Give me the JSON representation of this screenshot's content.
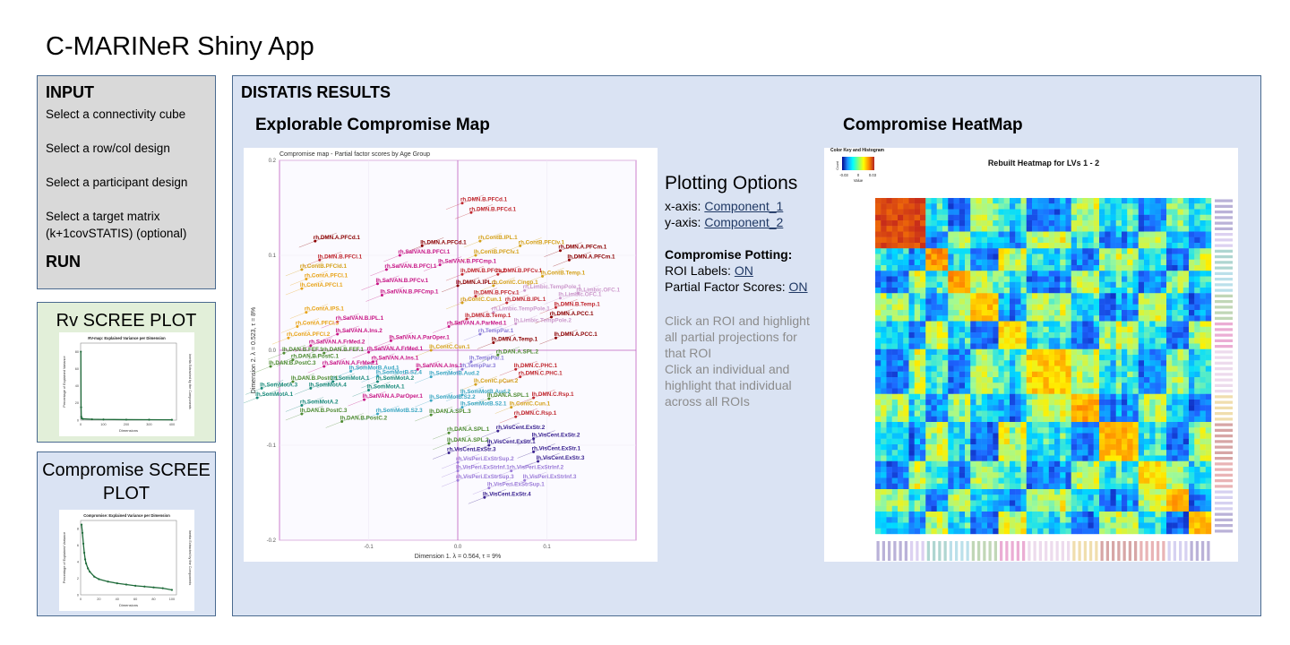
{
  "app_title": "C-MARINeR Shiny App",
  "input": {
    "heading": "INPUT",
    "options": [
      "Select a connectivity cube",
      "Select a row/col design",
      "Select a participant design",
      "Select a target matrix (k+1covSTATIS) (optional)"
    ],
    "run": "RUN"
  },
  "rv_scree": {
    "title": "Rv SCREE PLOT",
    "plot_title": "RV-map: Explained Variance per Dimension",
    "xlabel": "Dimensions",
    "ylabel": "Percentage of Explained Variance",
    "ylabel2": "Inertia Extracted by the Components"
  },
  "comp_scree": {
    "title": "Compromise SCREE PLOT",
    "plot_title": "Compromise: Explained Variance per Dimension",
    "xlabel": "Dimensions",
    "ylabel": "Percentage of Explained Variance",
    "ylabel2": "Inertia Extracted by the Components"
  },
  "results": {
    "title": "DISTATIS RESULTS",
    "map_title": "Explorable Compromise Map",
    "heat_title": "Compromise HeatMap"
  },
  "map": {
    "plot_title": "Compromise map - Partial factor scores by Age Group",
    "xlabel": "Dimension 1.  λ = 0.564,  τ = 9%",
    "ylabel": "Dimension 2.  λ = 0.523,  τ = 8%",
    "xticks": [
      "-0.1",
      "0.0",
      "0.1"
    ],
    "yticks": [
      "0.2",
      "0.1",
      "0.0",
      "-0.1",
      "-0.2"
    ],
    "labels": [
      {
        "t": "rh.DMN.B.PFCd.1",
        "x": 0.005,
        "y": 0.155,
        "c": "#c0282f"
      },
      {
        "t": "rh.DMN.B.PFCd.1",
        "x": 0.015,
        "y": 0.145,
        "c": "#c0282f"
      },
      {
        "t": "rh.DMN.A.PFCd.1",
        "x": -0.16,
        "y": 0.115,
        "c": "#8b0000"
      },
      {
        "t": "lh.DMN.A.PFCd.1",
        "x": -0.04,
        "y": 0.11,
        "c": "#8b0000"
      },
      {
        "t": "rh.ContB.IPL.1",
        "x": 0.025,
        "y": 0.115,
        "c": "#d4a017"
      },
      {
        "t": "rh.ContB.PFClv.1",
        "x": 0.07,
        "y": 0.11,
        "c": "#d4a017"
      },
      {
        "t": "rh.DMN.A.PFCm.1",
        "x": 0.115,
        "y": 0.105,
        "c": "#8b0000"
      },
      {
        "t": "lh.DMN.A.PFCm.1",
        "x": 0.125,
        "y": 0.095,
        "c": "#8b0000"
      },
      {
        "t": "lh.DMN.B.PFCl.1",
        "x": -0.155,
        "y": 0.095,
        "c": "#c0282f"
      },
      {
        "t": "rh.SalVAN.B.PFCl.1",
        "x": -0.065,
        "y": 0.1,
        "c": "#c71585"
      },
      {
        "t": "lh.SalVAN.B.PFCmp.1",
        "x": -0.02,
        "y": 0.09,
        "c": "#c71585"
      },
      {
        "t": "lh.ContB.PFClv.1",
        "x": 0.02,
        "y": 0.1,
        "c": "#d4a017"
      },
      {
        "t": "rh.ContB.PFCld.1",
        "x": -0.175,
        "y": 0.085,
        "c": "#d4a017"
      },
      {
        "t": "rh.SalVAN.B.PFCl.1",
        "x": -0.08,
        "y": 0.085,
        "c": "#c71585"
      },
      {
        "t": "lh.DMN.B.PFCv.2",
        "x": 0.005,
        "y": 0.08,
        "c": "#c0282f"
      },
      {
        "t": "rh.DMN.B.PFCv.1",
        "x": 0.045,
        "y": 0.08,
        "c": "#c0282f"
      },
      {
        "t": "lh.ContB.Temp.1",
        "x": 0.095,
        "y": 0.078,
        "c": "#d4a017"
      },
      {
        "t": "rh.ContA.PFCl.1",
        "x": -0.17,
        "y": 0.075,
        "c": "#e8a317"
      },
      {
        "t": "lh.ContA.PFCl.1",
        "x": -0.175,
        "y": 0.065,
        "c": "#e8a317"
      },
      {
        "t": "lh.SalVAN.B.PFCv.1",
        "x": -0.09,
        "y": 0.07,
        "c": "#c71585"
      },
      {
        "t": "lh.DMN.A.IPL.1",
        "x": 0.0,
        "y": 0.068,
        "c": "#8b0000"
      },
      {
        "t": "rh.ContC.Cingp.1",
        "x": 0.04,
        "y": 0.068,
        "c": "#d4a017"
      },
      {
        "t": "rh.Limbic.TempPole.1",
        "x": 0.075,
        "y": 0.063,
        "c": "#cc99cc"
      },
      {
        "t": "rh.Limbic.OFC.1",
        "x": 0.135,
        "y": 0.06,
        "c": "#cc99cc"
      },
      {
        "t": "lh.SalVAN.B.PFCmp.1",
        "x": -0.085,
        "y": 0.058,
        "c": "#c71585"
      },
      {
        "t": "lh.DMN.B.PFCv.1",
        "x": 0.02,
        "y": 0.057,
        "c": "#c0282f"
      },
      {
        "t": "lh.Limbic.OFC.1",
        "x": 0.115,
        "y": 0.055,
        "c": "#cc99cc"
      },
      {
        "t": "rh.ContC.Cun.1",
        "x": 0.005,
        "y": 0.05,
        "c": "#d4a017"
      },
      {
        "t": "rh.DMN.B.IPL.1",
        "x": 0.055,
        "y": 0.05,
        "c": "#c0282f"
      },
      {
        "t": "lh.DMN.B.Temp.1",
        "x": 0.11,
        "y": 0.045,
        "c": "#c0282f"
      },
      {
        "t": "rh.ContA.IPS.1",
        "x": -0.17,
        "y": 0.04,
        "c": "#e8a317"
      },
      {
        "t": "rh.Limbic.TempPole.1",
        "x": 0.04,
        "y": 0.04,
        "c": "#cc99cc"
      },
      {
        "t": "rh.DMN.A.PCC.1",
        "x": 0.105,
        "y": 0.035,
        "c": "#8b0000"
      },
      {
        "t": "rh.SalVAN.B.IPL.1",
        "x": -0.135,
        "y": 0.03,
        "c": "#c71585"
      },
      {
        "t": "lh.DMN.B.Temp.1",
        "x": 0.01,
        "y": 0.033,
        "c": "#c0282f"
      },
      {
        "t": "lh.Limbic.TempPole.2",
        "x": 0.065,
        "y": 0.028,
        "c": "#cc99cc"
      },
      {
        "t": "rh.ContA.PFCl.3",
        "x": -0.18,
        "y": 0.025,
        "c": "#e8a317"
      },
      {
        "t": "rh.SalVAN.A.ParMed.1",
        "x": -0.01,
        "y": 0.025,
        "c": "#c71585"
      },
      {
        "t": "lh.SalVAN.A.Ins.2",
        "x": -0.135,
        "y": 0.017,
        "c": "#c71585"
      },
      {
        "t": "rh.TempPar.1",
        "x": 0.025,
        "y": 0.017,
        "c": "#8a7bd8"
      },
      {
        "t": "lh.DMN.A.PCC.1",
        "x": 0.11,
        "y": 0.013,
        "c": "#8b0000"
      },
      {
        "t": "rh.ContA.PFCl.2",
        "x": -0.19,
        "y": 0.013,
        "c": "#e8a317"
      },
      {
        "t": "lh.SalVAN.A.ParOper.1",
        "x": -0.075,
        "y": 0.01,
        "c": "#c71585"
      },
      {
        "t": "lh.DMN.A.Temp.1",
        "x": 0.04,
        "y": 0.008,
        "c": "#8b0000"
      },
      {
        "t": "rh.SalVAN.A.FrMed.2",
        "x": -0.165,
        "y": 0.005,
        "c": "#c71585"
      },
      {
        "t": "lh.ContC.Cun.1",
        "x": -0.03,
        "y": 0.0,
        "c": "#d4a017"
      },
      {
        "t": "lh.DAN.B.FEF.1",
        "x": -0.195,
        "y": -0.003,
        "c": "#4d8b31"
      },
      {
        "t": "rh.DAN.B.FEF.1",
        "x": -0.15,
        "y": -0.003,
        "c": "#4d8b31"
      },
      {
        "t": "rh.SalVAN.A.FrMed.1",
        "x": -0.1,
        "y": -0.002,
        "c": "#c71585"
      },
      {
        "t": "rh.DAN.A.SPL.2",
        "x": 0.045,
        "y": -0.005,
        "c": "#4d8b31"
      },
      {
        "t": "rh.DAN.B.PostC.1",
        "x": -0.185,
        "y": -0.01,
        "c": "#4d8b31"
      },
      {
        "t": "rh.SalVAN.A.Ins.1",
        "x": -0.095,
        "y": -0.012,
        "c": "#c71585"
      },
      {
        "t": "lh.TempPar.1",
        "x": 0.015,
        "y": -0.012,
        "c": "#8a7bd8"
      },
      {
        "t": "lh.DAN.B.PostC.3",
        "x": -0.21,
        "y": -0.017,
        "c": "#4d8b31"
      },
      {
        "t": "rh.SalVAN.A.FrMed.1",
        "x": -0.15,
        "y": -0.017,
        "c": "#c71585"
      },
      {
        "t": "lh.SomMotB.Aud.1",
        "x": -0.12,
        "y": -0.022,
        "c": "#3ba7c2"
      },
      {
        "t": "lh.SalVAN.A.Ins.1",
        "x": -0.045,
        "y": -0.02,
        "c": "#c71585"
      },
      {
        "t": "rh.TempPar.3",
        "x": 0.005,
        "y": -0.02,
        "c": "#8a7bd8"
      },
      {
        "t": "lh.DMN.C.PHC.1",
        "x": 0.065,
        "y": -0.02,
        "c": "#c0282f"
      },
      {
        "t": "lh.SomMotB.S2.4",
        "x": -0.09,
        "y": -0.027,
        "c": "#3ba7c2"
      },
      {
        "t": "lh.SomMotB.Aud.2",
        "x": -0.03,
        "y": -0.028,
        "c": "#3ba7c2"
      },
      {
        "t": "rh.DMN.C.PHC.1",
        "x": 0.07,
        "y": -0.028,
        "c": "#c0282f"
      },
      {
        "t": "lh.DAN.B.PostC.1",
        "x": -0.185,
        "y": -0.033,
        "c": "#4d8b31"
      },
      {
        "t": "rh.SomMotA.1",
        "x": -0.14,
        "y": -0.033,
        "c": "#1a8a7a"
      },
      {
        "t": "rh.SomMotA.2",
        "x": -0.09,
        "y": -0.033,
        "c": "#1a8a7a"
      },
      {
        "t": "lh.ContC.pCun.2",
        "x": 0.02,
        "y": -0.036,
        "c": "#d4a017"
      },
      {
        "t": "lh.SomMotA.3",
        "x": -0.22,
        "y": -0.04,
        "c": "#1a8a7a"
      },
      {
        "t": "lh.SomMotA.4",
        "x": -0.165,
        "y": -0.04,
        "c": "#1a8a7a"
      },
      {
        "t": "lh.SomMotA.1",
        "x": -0.1,
        "y": -0.042,
        "c": "#1a8a7a"
      },
      {
        "t": "lh.SomMotB.Aud.2",
        "x": 0.005,
        "y": -0.047,
        "c": "#3ba7c2"
      },
      {
        "t": "lh.SomMotA.1",
        "x": -0.225,
        "y": -0.05,
        "c": "#1a8a7a"
      },
      {
        "t": "lh.SalVAN.A.ParOper.1",
        "x": -0.105,
        "y": -0.052,
        "c": "#c71585"
      },
      {
        "t": "lh.SomMotB.S2.2",
        "x": -0.03,
        "y": -0.053,
        "c": "#3ba7c2"
      },
      {
        "t": "lh.DAN.A.SPL.1",
        "x": 0.035,
        "y": -0.051,
        "c": "#4d8b31"
      },
      {
        "t": "lh.DMN.C.Rsp.1",
        "x": 0.085,
        "y": -0.05,
        "c": "#c0282f"
      },
      {
        "t": "rh.SomMotA.2",
        "x": -0.175,
        "y": -0.058,
        "c": "#1a8a7a"
      },
      {
        "t": "lh.SomMotB.S2.1",
        "x": 0.005,
        "y": -0.06,
        "c": "#3ba7c2"
      },
      {
        "t": "lh.ContC.Cun.1",
        "x": 0.06,
        "y": -0.06,
        "c": "#d4a017"
      },
      {
        "t": "lh.DAN.B.PostC.3",
        "x": -0.175,
        "y": -0.067,
        "c": "#4d8b31"
      },
      {
        "t": "rh.SomMotB.S2.3",
        "x": -0.09,
        "y": -0.067,
        "c": "#3ba7c2"
      },
      {
        "t": "lh.DAN.A.SPL.3",
        "x": -0.03,
        "y": -0.068,
        "c": "#4d8b31"
      },
      {
        "t": "rh.DMN.C.Rsp.1",
        "x": 0.065,
        "y": -0.07,
        "c": "#c0282f"
      },
      {
        "t": "lh.DAN.B.PostC.2",
        "x": -0.13,
        "y": -0.075,
        "c": "#4d8b31"
      },
      {
        "t": "rh.DAN.A.SPL.1",
        "x": -0.01,
        "y": -0.087,
        "c": "#4d8b31"
      },
      {
        "t": "rh.VisCent.ExStr.2",
        "x": 0.045,
        "y": -0.085,
        "c": "#3a2290"
      },
      {
        "t": "lh.VisCent.ExStr.2",
        "x": 0.085,
        "y": -0.093,
        "c": "#3a2290"
      },
      {
        "t": "lh.DAN.A.SPL.2",
        "x": -0.01,
        "y": -0.098,
        "c": "#4d8b31"
      },
      {
        "t": "lh.VisCent.ExStr.1",
        "x": 0.035,
        "y": -0.1,
        "c": "#3a2290"
      },
      {
        "t": "rh.VisCent.ExStr.3",
        "x": -0.01,
        "y": -0.108,
        "c": "#3a2290"
      },
      {
        "t": "rh.VisCent.ExStr.1",
        "x": 0.085,
        "y": -0.107,
        "c": "#3a2290"
      },
      {
        "t": "lh.VisCent.ExStr.3",
        "x": 0.09,
        "y": -0.117,
        "c": "#3a2290"
      },
      {
        "t": "rh.VisPeri.ExStrSup.2",
        "x": 0.0,
        "y": -0.118,
        "c": "#9b7bd8"
      },
      {
        "t": "lh.VisPeri.ExStrInf.1",
        "x": 0.0,
        "y": -0.127,
        "c": "#9b7bd8"
      },
      {
        "t": "rh.VisPeri.ExStrInf.2",
        "x": 0.06,
        "y": -0.127,
        "c": "#9b7bd8"
      },
      {
        "t": "rh.VisPeri.ExStrSup.3",
        "x": 0.0,
        "y": -0.137,
        "c": "#9b7bd8"
      },
      {
        "t": "lh.VisPeri.ExStrInf.3",
        "x": 0.075,
        "y": -0.137,
        "c": "#9b7bd8"
      },
      {
        "t": "lh.VisPeri.ExStrSup.1",
        "x": 0.035,
        "y": -0.145,
        "c": "#9b7bd8"
      },
      {
        "t": "lh.VisCent.ExStr.4",
        "x": 0.03,
        "y": -0.155,
        "c": "#3a2290"
      }
    ]
  },
  "options": {
    "title": "Plotting Options",
    "x_label": "x-axis:",
    "x_value": "Component_1",
    "y_label": "y-axis:",
    "y_value": "Component_2",
    "compromise_heading": "Compromise Potting:",
    "roi_label": "ROI Labels:",
    "roi_value": "ON",
    "pfs_label": "Partial Factor Scores:",
    "pfs_value": "ON",
    "hint1": "Click an ROI and highlight all partial projections for that ROI",
    "hint2": "Click an individual and highlight that individual across all ROIs"
  },
  "heatmap": {
    "title": "Rebuilt Heatmap for LVs 1 - 2",
    "key_title": "Color Key and Histogram",
    "key_ylabel": "Count",
    "key_ticks": [
      "-0.03",
      "0",
      "0.03"
    ],
    "key_xlabel": "Value"
  },
  "chart_data": [
    {
      "type": "scatter",
      "title": "Compromise map - Partial factor scores by Age Group",
      "xlabel": "Dimension 1.  λ = 0.564,  τ = 9%",
      "ylabel": "Dimension 2.  λ = 0.523,  τ = 8%",
      "xlim": [
        -0.2,
        0.2
      ],
      "ylim": [
        -0.2,
        0.2
      ]
    },
    {
      "type": "line",
      "title": "RV-map: Explained Variance per Dimension",
      "xlabel": "Dimensions",
      "ylabel": "Percentage of Explained Variance",
      "x": [
        1,
        2,
        3,
        5,
        10,
        50,
        100,
        200,
        300,
        400
      ],
      "values": [
        80,
        15,
        4,
        2,
        1.5,
        1,
        0.8,
        0.6,
        0.5,
        0.4
      ],
      "xlim": [
        0,
        420
      ],
      "ylim": [
        0,
        90
      ],
      "xticks": [
        "0",
        "100",
        "200",
        "300",
        "400"
      ],
      "yticks": [
        "0",
        "20",
        "40",
        "60",
        "80"
      ]
    },
    {
      "type": "line",
      "title": "Compromise: Explained Variance per Dimension",
      "xlabel": "Dimensions",
      "ylabel": "Percentage of Explained Variance",
      "x": [
        1,
        2,
        3,
        4,
        5,
        6,
        8,
        10,
        15,
        20,
        30,
        40,
        50,
        60,
        70,
        80,
        90,
        100
      ],
      "values": [
        8.5,
        7.5,
        6.2,
        5.1,
        4.3,
        3.8,
        3.2,
        2.8,
        2.2,
        1.9,
        1.6,
        1.4,
        1.25,
        1.1,
        1.0,
        0.9,
        0.8,
        0.6
      ],
      "xlim": [
        0,
        105
      ],
      "ylim": [
        0,
        9
      ],
      "xticks": [
        "0",
        "20",
        "40",
        "60",
        "80",
        "100"
      ],
      "yticks": [
        "0",
        "2",
        "4",
        "6",
        "8"
      ]
    }
  ]
}
